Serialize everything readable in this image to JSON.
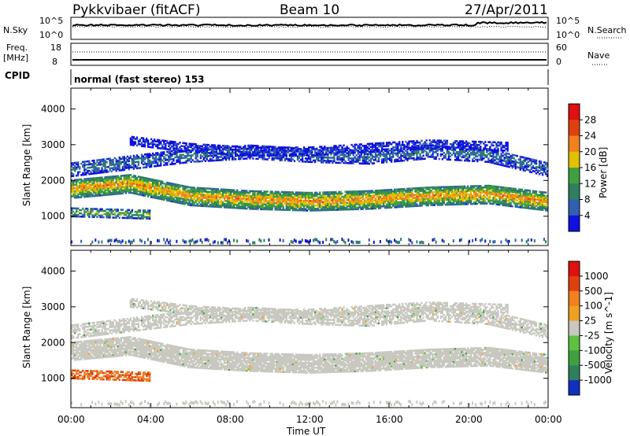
{
  "header": {
    "title": "Pykkvibaer (fitACF)",
    "beam": "Beam 10",
    "date": "27/Apr/2011"
  },
  "top_panels": {
    "nsky_label": "N.Sky",
    "nsky_ticks": [
      "10^5",
      "10^0"
    ],
    "nsearch_label": "N.Search",
    "nsearch_ticks": [
      "10^5",
      "10^0"
    ],
    "freq_label": "Freq.",
    "freq_unit": "[MHz]",
    "freq_ticks": [
      "18",
      "8"
    ],
    "nave_label": "Nave",
    "nave_ticks": [
      "60",
      "0"
    ],
    "cpid_label": "CPID",
    "cpid_text": "normal (fast stereo) 153"
  },
  "chart_data": [
    {
      "type": "heatmap",
      "title": "",
      "ylabel": "Slant Range [km]",
      "ylim": [
        180,
        4580
      ],
      "yticks": [
        "1000",
        "2000",
        "3000",
        "4000"
      ],
      "x": [
        "00:00",
        "04:00",
        "08:00",
        "12:00",
        "16:00",
        "20:00",
        "00:00"
      ],
      "colorbar": {
        "label": "Power [dB]",
        "ticks": [
          "4",
          "8",
          "12",
          "16",
          "20",
          "24",
          "28"
        ],
        "colors": [
          "#1010e0",
          "#3060b0",
          "#2f7f5f",
          "#3fa040",
          "#e0c000",
          "#f08020",
          "#e04010",
          "#e01010"
        ]
      },
      "bands": [
        {
          "name": "main backscatter band",
          "start_hr": 0,
          "end_hr": 24,
          "center_km": [
            1750,
            1900,
            1550,
            1450,
            1400,
            1450,
            1550,
            1600,
            1400
          ],
          "value_db": 24
        },
        {
          "name": "upper band",
          "start_hr": 0,
          "end_hr": 24,
          "center_km": [
            2300,
            2500,
            2700,
            2800,
            2700,
            2650,
            2800,
            2700,
            2300
          ],
          "value_db": 10
        },
        {
          "name": "far scatter",
          "start_hr": 3,
          "end_hr": 22,
          "center_km": [
            3000,
            3100,
            2900,
            2800,
            2800,
            2900,
            3000,
            2950,
            2900
          ],
          "value_db": 6
        },
        {
          "name": "near range echoes",
          "start_hr": 0,
          "end_hr": 4,
          "center_km": [
            1100,
            1050,
            1000,
            950,
            1000,
            1000,
            1000,
            1000,
            1000
          ],
          "value_db": 18
        }
      ]
    },
    {
      "type": "heatmap",
      "title": "",
      "ylabel": "Slant Range [km]",
      "ylim": [
        180,
        4580
      ],
      "yticks": [
        "1000",
        "2000",
        "3000",
        "4000"
      ],
      "x": [
        "00:00",
        "04:00",
        "08:00",
        "12:00",
        "16:00",
        "20:00",
        "00:00"
      ],
      "xlabel": "Time UT",
      "colorbar": {
        "label": "Velocity [m s^-1]",
        "ticks": [
          "1000",
          "500",
          "100",
          "25",
          "-25",
          "-100",
          "-500",
          "-1000"
        ],
        "colors": [
          "#1030c0",
          "#2f7f5f",
          "#3fa040",
          "#60c040",
          "#c8c8c0",
          "#f0a020",
          "#f08020",
          "#e04010",
          "#e01010"
        ]
      }
    }
  ]
}
